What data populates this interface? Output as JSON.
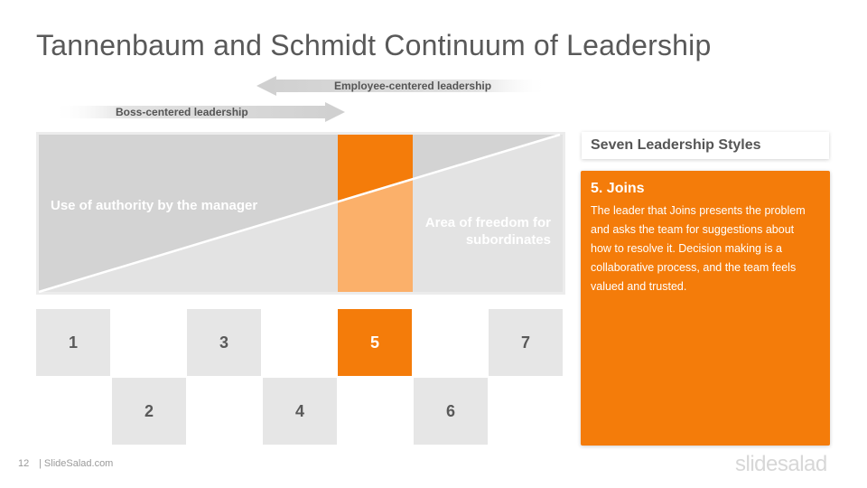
{
  "slide": {
    "title": "Tannenbaum and Schmidt Continuum of Leadership"
  },
  "arrows": {
    "employee_label": "Employee-centered leadership",
    "boss_label": "Boss-centered leadership"
  },
  "diagram": {
    "authority_label": "Use of authority by the manager",
    "freedom_label": "Area of freedom for subordinates"
  },
  "levels": {
    "top_row": [
      "1",
      "3",
      "5",
      "7"
    ],
    "bottom_row": [
      "2",
      "4",
      "6"
    ],
    "active_level": "5"
  },
  "sidebar": {
    "header": "Seven Leadership Styles",
    "style_title": "5. Joins",
    "style_description": "The leader that Joins presents the problem and asks the team for suggestions about how to resolve it. Decision making is a collaborative process, and the team feels valued and trusted."
  },
  "footer": {
    "page_number": "12",
    "site": "| SlideSalad.com",
    "brand": "slidesalad"
  },
  "colors": {
    "accent": "#f47c0a",
    "accent_light": "#fbb06a",
    "panel_light": "#e6e6e6",
    "panel_dark": "#d4d4d4",
    "text": "#595959"
  }
}
